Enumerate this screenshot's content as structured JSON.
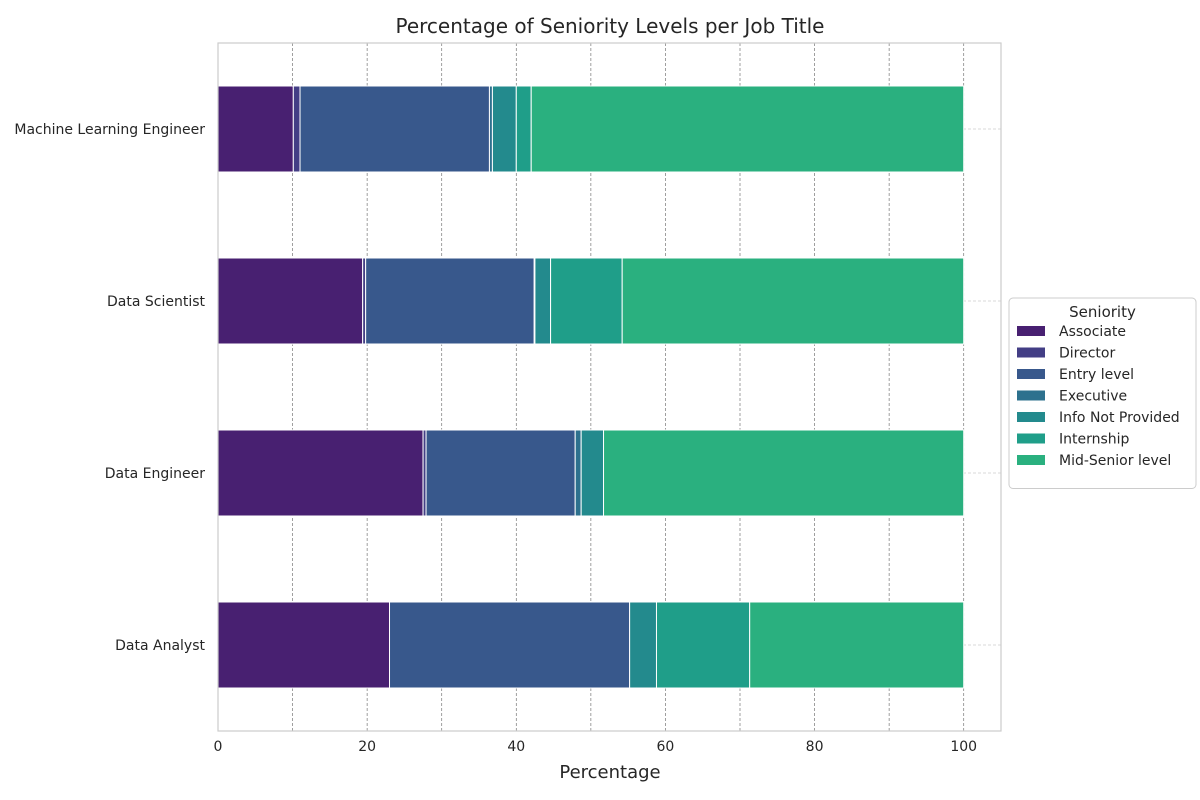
{
  "chart_data": {
    "type": "bar",
    "orientation": "horizontal",
    "stacked": true,
    "title": "Percentage of Seniority Levels per Job Title",
    "xlabel": "Percentage",
    "ylabel": "",
    "xlim": [
      0,
      105
    ],
    "xticks": [
      0,
      20,
      40,
      60,
      80,
      100
    ],
    "grid": true,
    "legend": {
      "title": "Seniority",
      "placement": "right"
    },
    "categories": [
      "Data Analyst",
      "Data Engineer",
      "Data Scientist",
      "Machine Learning Engineer"
    ],
    "series": [
      {
        "name": "Associate",
        "color": "#482071",
        "values": [
          23.0,
          27.5,
          19.4,
          10.1
        ]
      },
      {
        "name": "Director",
        "color": "#433e85",
        "values": [
          0.0,
          0.4,
          0.4,
          0.9
        ]
      },
      {
        "name": "Entry level",
        "color": "#38588c",
        "values": [
          32.2,
          20.0,
          22.6,
          25.4
        ]
      },
      {
        "name": "Executive",
        "color": "#2d718e",
        "values": [
          0.0,
          0.8,
          0.1,
          0.4
        ]
      },
      {
        "name": "Info Not Provided",
        "color": "#238a8d",
        "values": [
          3.6,
          3.0,
          2.1,
          3.2
        ]
      },
      {
        "name": "Internship",
        "color": "#1f9e89",
        "values": [
          12.5,
          0.0,
          9.6,
          2.0
        ]
      },
      {
        "name": "Mid-Senior level",
        "color": "#2ab07f",
        "values": [
          28.7,
          48.3,
          45.8,
          58.0
        ]
      }
    ]
  }
}
